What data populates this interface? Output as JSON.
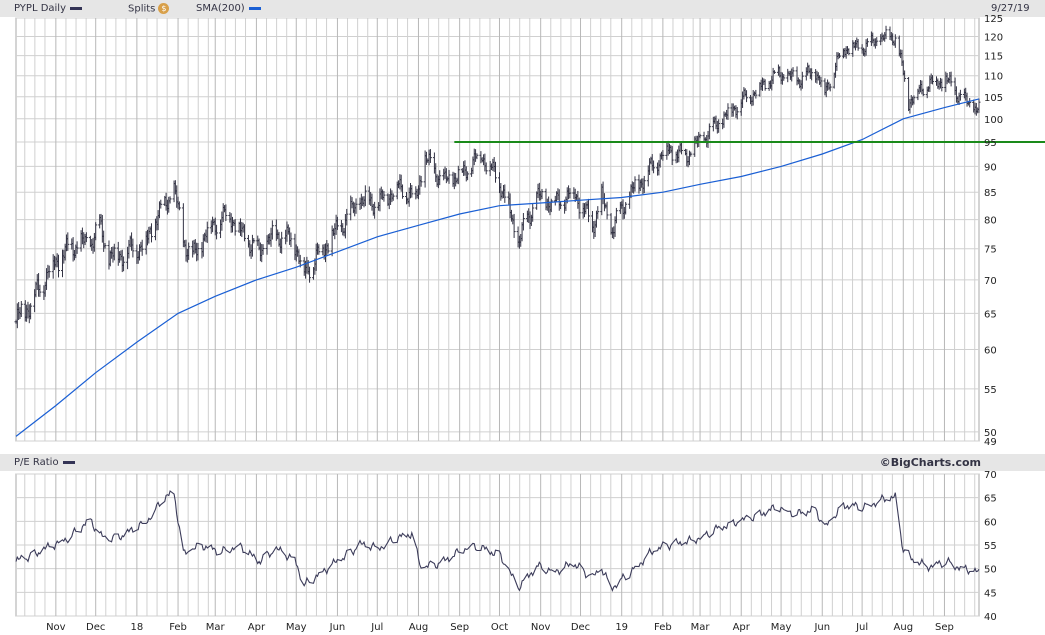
{
  "header": {
    "symbol_label": "PYPL Daily",
    "symbol_color": "#333355",
    "splits_label": "Splits",
    "splits_icon": "dollar-badge-icon",
    "splits_icon_glyph": "$",
    "sma_label": "SMA(200)",
    "sma_color": "#1a5fd4",
    "date_label": "9/27/19"
  },
  "lower_header": {
    "label": "P/E Ratio",
    "swatch_color": "#333355",
    "brand": "©BigCharts.com"
  },
  "colors": {
    "price_bars": "#333344",
    "sma_line": "#1a5fd4",
    "support_line": "#1a8a1a",
    "pe_line": "#3c3c5a",
    "grid": "#d0d0d0"
  },
  "chart_data": [
    {
      "type": "line",
      "title": "PYPL Daily",
      "scale": "log",
      "ylim": [
        49,
        125
      ],
      "y_ticks": [
        49,
        50,
        55,
        60,
        65,
        70,
        75,
        80,
        85,
        90,
        95,
        100,
        105,
        110,
        115,
        120,
        125
      ],
      "x_tick_labels": [
        "Nov",
        "Dec",
        "18",
        "Feb",
        "Mar",
        "Apr",
        "May",
        "Jun",
        "Jul",
        "Aug",
        "Sep",
        "Oct",
        "Nov",
        "Dec",
        "19",
        "Feb",
        "Mar",
        "Apr",
        "May",
        "Jun",
        "Jul",
        "Aug",
        "Sep"
      ],
      "x_range": [
        "2017-10-02",
        "2019-09-27"
      ],
      "grid": true,
      "series": [
        {
          "name": "PYPL Daily",
          "style": "ohlc-bars",
          "points": [
            [
              "2017-10-02",
              63.8
            ],
            [
              "2017-10-16",
              67.5
            ],
            [
              "2017-10-30",
              72.5
            ],
            [
              "2017-11-13",
              75.5
            ],
            [
              "2017-11-27",
              76.0
            ],
            [
              "2017-12-04",
              79.0
            ],
            [
              "2017-12-11",
              73.5
            ],
            [
              "2017-12-25",
              74.5
            ],
            [
              "2018-01-08",
              76.0
            ],
            [
              "2018-01-15",
              80.0
            ],
            [
              "2018-01-29",
              85.5
            ],
            [
              "2018-02-05",
              76.5
            ],
            [
              "2018-02-12",
              73.5
            ],
            [
              "2018-02-26",
              79.0
            ],
            [
              "2018-03-12",
              81.0
            ],
            [
              "2018-03-19",
              78.0
            ],
            [
              "2018-04-02",
              74.5
            ],
            [
              "2018-04-16",
              77.5
            ],
            [
              "2018-04-30",
              76.0
            ],
            [
              "2018-05-07",
              71.0
            ],
            [
              "2018-05-21",
              75.0
            ],
            [
              "2018-06-04",
              79.0
            ],
            [
              "2018-06-18",
              83.5
            ],
            [
              "2018-07-02",
              83.0
            ],
            [
              "2018-07-16",
              86.0
            ],
            [
              "2018-07-30",
              84.0
            ],
            [
              "2018-08-06",
              91.5
            ],
            [
              "2018-08-20",
              87.0
            ],
            [
              "2018-09-03",
              88.5
            ],
            [
              "2018-09-17",
              92.5
            ],
            [
              "2018-10-01",
              87.0
            ],
            [
              "2018-10-08",
              82.0
            ],
            [
              "2018-10-15",
              76.0
            ],
            [
              "2018-10-29",
              84.0
            ],
            [
              "2018-11-12",
              83.0
            ],
            [
              "2018-11-26",
              85.0
            ],
            [
              "2018-12-10",
              79.0
            ],
            [
              "2018-12-17",
              84.0
            ],
            [
              "2018-12-24",
              78.0
            ],
            [
              "2019-01-07",
              84.5
            ],
            [
              "2019-01-21",
              89.0
            ],
            [
              "2019-02-04",
              93.5
            ],
            [
              "2019-02-18",
              92.0
            ],
            [
              "2019-03-04",
              96.0
            ],
            [
              "2019-03-18",
              100.0
            ],
            [
              "2019-04-01",
              104.0
            ],
            [
              "2019-04-15",
              107.0
            ],
            [
              "2019-04-29",
              110.5
            ],
            [
              "2019-05-13",
              109.0
            ],
            [
              "2019-05-27",
              111.0
            ],
            [
              "2019-06-03",
              106.0
            ],
            [
              "2019-06-17",
              117.0
            ],
            [
              "2019-07-01",
              117.0
            ],
            [
              "2019-07-15",
              119.5
            ],
            [
              "2019-07-26",
              120.0
            ],
            [
              "2019-08-05",
              104.0
            ],
            [
              "2019-08-19",
              108.0
            ],
            [
              "2019-09-02",
              109.0
            ],
            [
              "2019-09-16",
              104.0
            ],
            [
              "2019-09-27",
              102.0
            ]
          ]
        },
        {
          "name": "SMA(200)",
          "style": "line",
          "points": [
            [
              "2017-10-02",
              49.5
            ],
            [
              "2017-11-01",
              53.0
            ],
            [
              "2017-12-01",
              57.0
            ],
            [
              "2018-01-01",
              61.0
            ],
            [
              "2018-02-01",
              65.0
            ],
            [
              "2018-03-01",
              67.5
            ],
            [
              "2018-04-01",
              70.0
            ],
            [
              "2018-05-01",
              72.0
            ],
            [
              "2018-06-01",
              74.5
            ],
            [
              "2018-07-01",
              77.0
            ],
            [
              "2018-08-01",
              79.0
            ],
            [
              "2018-09-01",
              81.0
            ],
            [
              "2018-10-01",
              82.5
            ],
            [
              "2018-11-01",
              83.0
            ],
            [
              "2018-12-01",
              83.5
            ],
            [
              "2019-01-01",
              84.0
            ],
            [
              "2019-02-01",
              85.0
            ],
            [
              "2019-03-01",
              86.5
            ],
            [
              "2019-04-01",
              88.0
            ],
            [
              "2019-05-01",
              90.0
            ],
            [
              "2019-06-01",
              92.5
            ],
            [
              "2019-07-01",
              95.5
            ],
            [
              "2019-08-01",
              100.0
            ],
            [
              "2019-09-01",
              102.5
            ],
            [
              "2019-09-27",
              104.5
            ]
          ]
        },
        {
          "name": "Support",
          "style": "horizontal",
          "points": [
            [
              "2018-08-28",
              95
            ],
            [
              "2019-09-27",
              95
            ]
          ]
        }
      ]
    },
    {
      "type": "line",
      "title": "P/E Ratio",
      "ylim": [
        40,
        70
      ],
      "y_ticks": [
        40,
        45,
        50,
        55,
        60,
        65,
        70
      ],
      "x_tick_labels": [
        "Nov",
        "Dec",
        "18",
        "Feb",
        "Mar",
        "Apr",
        "May",
        "Jun",
        "Jul",
        "Aug",
        "Sep",
        "Oct",
        "Nov",
        "Dec",
        "19",
        "Feb",
        "Mar",
        "Apr",
        "May",
        "Jun",
        "Jul",
        "Aug",
        "Sep"
      ],
      "x_range": [
        "2017-10-02",
        "2019-09-27"
      ],
      "grid": true,
      "series": [
        {
          "name": "P/E Ratio",
          "points": [
            [
              "2017-10-02",
              51.5
            ],
            [
              "2017-10-16",
              53.0
            ],
            [
              "2017-10-30",
              55.0
            ],
            [
              "2017-11-13",
              57.0
            ],
            [
              "2017-11-27",
              60.5
            ],
            [
              "2017-12-04",
              57.0
            ],
            [
              "2017-12-11",
              56.0
            ],
            [
              "2017-12-25",
              57.5
            ],
            [
              "2018-01-08",
              60.0
            ],
            [
              "2018-01-22",
              65.0
            ],
            [
              "2018-01-29",
              66.0
            ],
            [
              "2018-02-05",
              53.0
            ],
            [
              "2018-02-19",
              55.0
            ],
            [
              "2018-03-05",
              53.5
            ],
            [
              "2018-03-19",
              55.0
            ],
            [
              "2018-04-02",
              51.5
            ],
            [
              "2018-04-16",
              54.0
            ],
            [
              "2018-04-30",
              52.0
            ],
            [
              "2018-05-07",
              46.5
            ],
            [
              "2018-05-21",
              49.5
            ],
            [
              "2018-06-04",
              52.0
            ],
            [
              "2018-06-18",
              55.0
            ],
            [
              "2018-07-02",
              54.5
            ],
            [
              "2018-07-16",
              56.5
            ],
            [
              "2018-07-27",
              57.5
            ],
            [
              "2018-08-03",
              50.0
            ],
            [
              "2018-08-20",
              51.5
            ],
            [
              "2018-09-03",
              54.0
            ],
            [
              "2018-09-10",
              55.0
            ],
            [
              "2018-10-01",
              53.0
            ],
            [
              "2018-10-15",
              46.0
            ],
            [
              "2018-10-29",
              50.5
            ],
            [
              "2018-11-12",
              49.5
            ],
            [
              "2018-11-26",
              51.0
            ],
            [
              "2018-12-10",
              48.0
            ],
            [
              "2018-12-17",
              50.0
            ],
            [
              "2018-12-24",
              46.0
            ],
            [
              "2019-01-07",
              49.0
            ],
            [
              "2019-01-21",
              53.0
            ],
            [
              "2019-02-04",
              55.0
            ],
            [
              "2019-02-18",
              55.5
            ],
            [
              "2019-03-04",
              57.0
            ],
            [
              "2019-03-18",
              59.0
            ],
            [
              "2019-04-01",
              60.0
            ],
            [
              "2019-04-15",
              61.5
            ],
            [
              "2019-04-29",
              63.0
            ],
            [
              "2019-05-13",
              61.5
            ],
            [
              "2019-05-27",
              62.5
            ],
            [
              "2019-06-03",
              58.5
            ],
            [
              "2019-06-17",
              63.5
            ],
            [
              "2019-07-01",
              63.0
            ],
            [
              "2019-07-15",
              64.5
            ],
            [
              "2019-07-26",
              65.0
            ],
            [
              "2019-08-01",
              54.0
            ],
            [
              "2019-08-09",
              51.5
            ],
            [
              "2019-08-19",
              50.5
            ],
            [
              "2019-09-02",
              51.5
            ],
            [
              "2019-09-16",
              50.0
            ],
            [
              "2019-09-27",
              49.0
            ]
          ]
        }
      ]
    }
  ]
}
